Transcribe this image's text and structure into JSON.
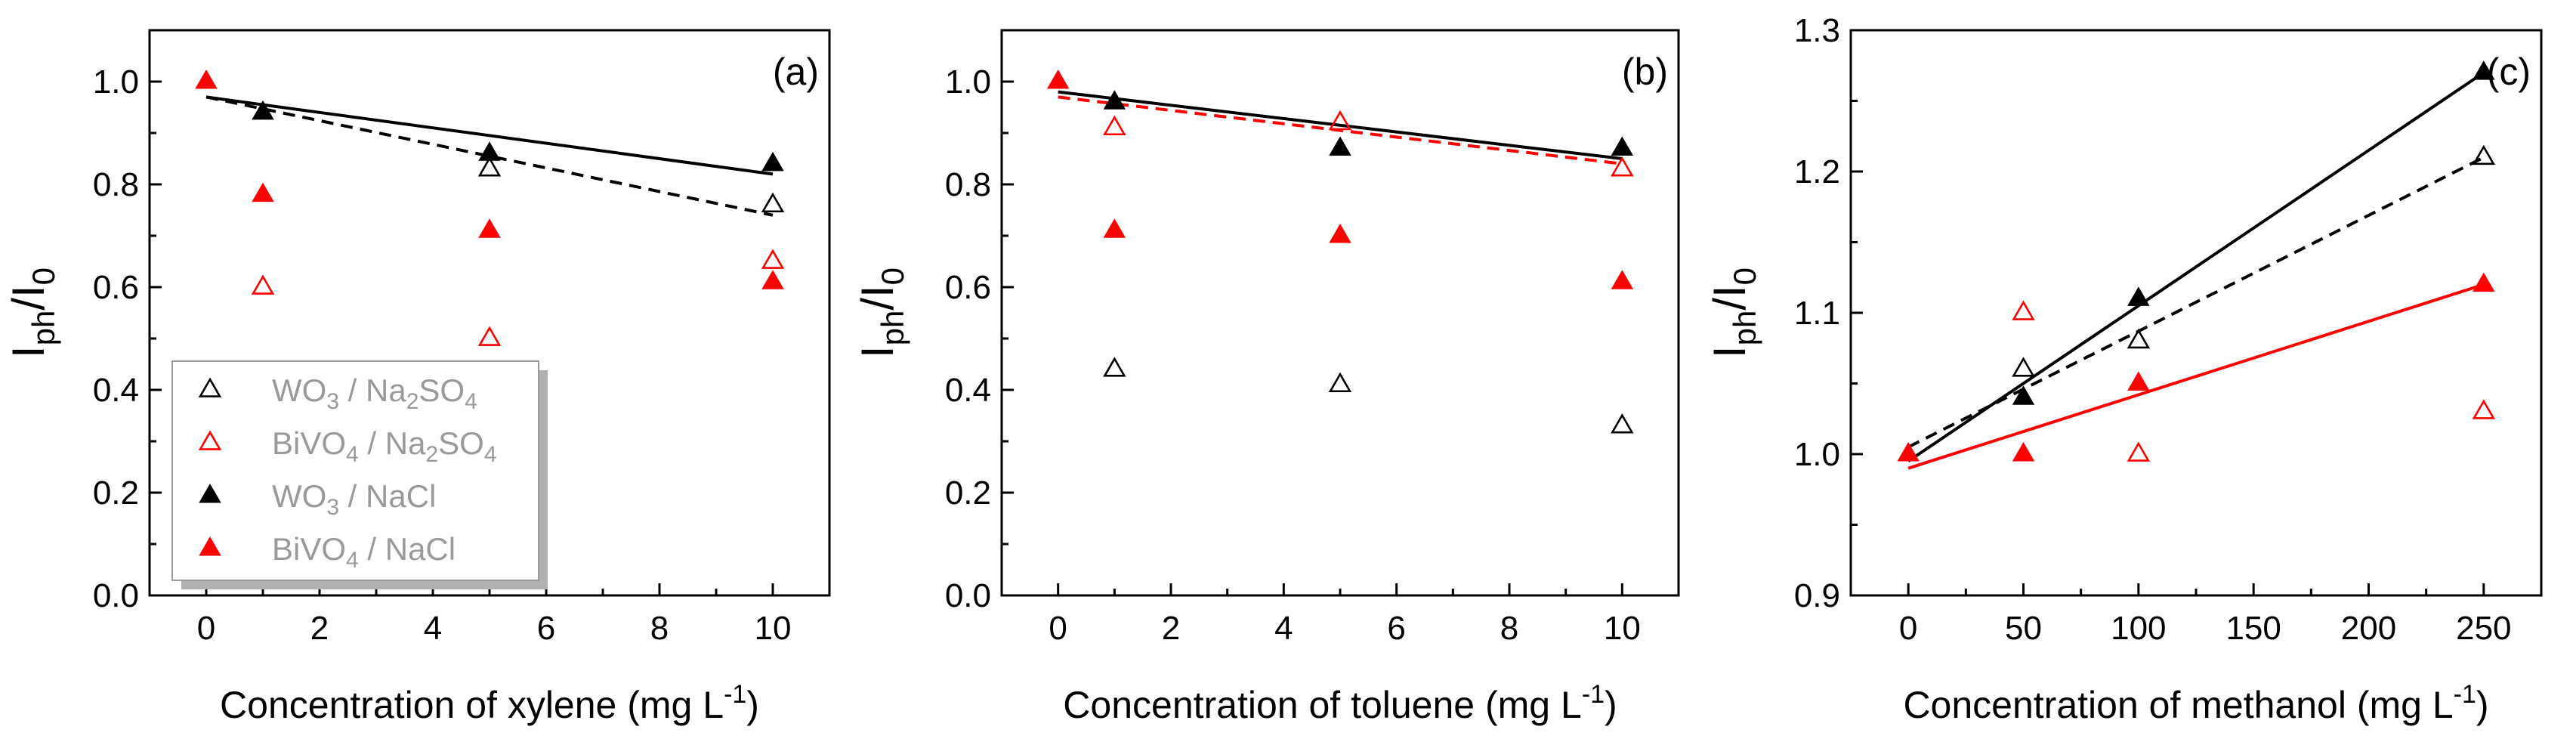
{
  "figure": {
    "description_free": true
  },
  "colors": {
    "black": "#000000",
    "red": "#ff0000",
    "legend_text": "#9a9a9a",
    "legend_shadow": "#b0b0b0"
  },
  "legend": {
    "entries": [
      {
        "label": "WO3 / Na2SO4",
        "material": "WO",
        "material_sub": "3",
        "sep": " / ",
        "salt": "Na",
        "salt_sub": "2",
        "salt_rest": "SO",
        "salt_sub2": "4",
        "marker": "open",
        "color": "#000000"
      },
      {
        "label": "BiVO4 / Na2SO4",
        "material": "BiVO",
        "material_sub": "4",
        "sep": " / ",
        "salt": "Na",
        "salt_sub": "2",
        "salt_rest": "SO",
        "salt_sub2": "4",
        "marker": "open",
        "color": "#ff0000"
      },
      {
        "label": "WO3 / NaCl",
        "material": "WO",
        "material_sub": "3",
        "sep": " / ",
        "salt": "NaCl",
        "salt_sub": "",
        "salt_rest": "",
        "salt_sub2": "",
        "marker": "filled",
        "color": "#000000"
      },
      {
        "label": "BiVO4 / NaCl",
        "material": "BiVO",
        "material_sub": "4",
        "sep": " / ",
        "salt": "NaCl",
        "salt_sub": "",
        "salt_rest": "",
        "salt_sub2": "",
        "marker": "filled",
        "color": "#ff0000"
      }
    ]
  },
  "chart_data": [
    {
      "type": "scatter",
      "panel_label": "(a)",
      "ylabel": {
        "main": "I",
        "sub1": "ph",
        "mid": "/I",
        "sub2": "0"
      },
      "xlabel": {
        "text": "Concentration of xylene (mg L",
        "sup": "-1",
        "close": ")"
      },
      "xlim": [
        -1,
        11
      ],
      "ylim": [
        0,
        1.1
      ],
      "xticks": [
        0,
        2,
        4,
        6,
        8,
        10
      ],
      "yticks": [
        0.0,
        0.2,
        0.4,
        0.6,
        0.8,
        1.0
      ],
      "xtick_labels": [
        "0",
        "2",
        "4",
        "6",
        "8",
        "10"
      ],
      "ytick_labels": [
        "0.0",
        "0.2",
        "0.4",
        "0.6",
        "0.8",
        "1.0"
      ],
      "series": [
        {
          "name": "WO3 / Na2SO4",
          "marker": "open",
          "color": "#000000",
          "x": [
            5,
            10
          ],
          "y": [
            0.83,
            0.76
          ]
        },
        {
          "name": "BiVO4 / Na2SO4",
          "marker": "open",
          "color": "#ff0000",
          "x": [
            1,
            5,
            10
          ],
          "y": [
            0.6,
            0.5,
            0.65
          ]
        },
        {
          "name": "WO3 / NaCl",
          "marker": "filled",
          "color": "#000000",
          "x": [
            1,
            5,
            10
          ],
          "y": [
            0.94,
            0.86,
            0.84
          ]
        },
        {
          "name": "BiVO4 / NaCl",
          "marker": "filled",
          "color": "#ff0000",
          "x": [
            0,
            1,
            5,
            10
          ],
          "y": [
            1.0,
            0.78,
            0.71,
            0.61
          ]
        }
      ],
      "fits": [
        {
          "series": "WO3 / NaCl",
          "style": "solid",
          "color": "#000000",
          "x": [
            0,
            10
          ],
          "y": [
            0.97,
            0.82
          ]
        },
        {
          "series": "WO3 / Na2SO4",
          "style": "dashed",
          "color": "#000000",
          "x": [
            0,
            10
          ],
          "y": [
            0.97,
            0.74
          ]
        }
      ]
    },
    {
      "type": "scatter",
      "panel_label": "(b)",
      "ylabel": {
        "main": "I",
        "sub1": "ph",
        "mid": "/I",
        "sub2": "0"
      },
      "xlabel": {
        "text": "Concentration of toluene (mg L",
        "sup": "-1",
        "close": ")"
      },
      "xlim": [
        -1,
        11
      ],
      "ylim": [
        0,
        1.1
      ],
      "xticks": [
        0,
        2,
        4,
        6,
        8,
        10
      ],
      "yticks": [
        0.0,
        0.2,
        0.4,
        0.6,
        0.8,
        1.0
      ],
      "xtick_labels": [
        "0",
        "2",
        "4",
        "6",
        "8",
        "10"
      ],
      "ytick_labels": [
        "0.0",
        "0.2",
        "0.4",
        "0.6",
        "0.8",
        "1.0"
      ],
      "series": [
        {
          "name": "WO3 / Na2SO4",
          "marker": "open",
          "color": "#000000",
          "x": [
            1,
            5,
            10
          ],
          "y": [
            0.44,
            0.41,
            0.33
          ]
        },
        {
          "name": "BiVO4 / Na2SO4",
          "marker": "open",
          "color": "#ff0000",
          "x": [
            1,
            5,
            10
          ],
          "y": [
            0.91,
            0.92,
            0.83
          ]
        },
        {
          "name": "WO3 / NaCl",
          "marker": "filled",
          "color": "#000000",
          "x": [
            1,
            5,
            10
          ],
          "y": [
            0.96,
            0.87,
            0.87
          ]
        },
        {
          "name": "BiVO4 / NaCl",
          "marker": "filled",
          "color": "#ff0000",
          "x": [
            0,
            1,
            5,
            10
          ],
          "y": [
            1.0,
            0.71,
            0.7,
            0.61
          ]
        }
      ],
      "fits": [
        {
          "series": "WO3 / NaCl",
          "style": "solid",
          "color": "#000000",
          "x": [
            0,
            10
          ],
          "y": [
            0.98,
            0.85
          ]
        },
        {
          "series": "BiVO4 / Na2SO4",
          "style": "dashed",
          "color": "#ff0000",
          "x": [
            0,
            10
          ],
          "y": [
            0.97,
            0.84
          ]
        }
      ]
    },
    {
      "type": "scatter",
      "panel_label": "(c)",
      "ylabel": {
        "main": "I",
        "sub1": "ph",
        "mid": "/I",
        "sub2": "0"
      },
      "xlabel": {
        "text": "Concentration of methanol (mg L",
        "sup": "-1",
        "close": ")"
      },
      "xlim": [
        -25,
        275
      ],
      "ylim": [
        0.9,
        1.3
      ],
      "xticks": [
        0,
        50,
        100,
        150,
        200,
        250
      ],
      "yticks": [
        0.9,
        1.0,
        1.1,
        1.2,
        1.3
      ],
      "xtick_labels": [
        "0",
        "50",
        "100",
        "150",
        "200",
        "250"
      ],
      "ytick_labels": [
        "0.9",
        "1.0",
        "1.1",
        "1.2",
        "1.3"
      ],
      "series": [
        {
          "name": "WO3 / Na2SO4",
          "marker": "open",
          "color": "#000000",
          "x": [
            50,
            100,
            250
          ],
          "y": [
            1.06,
            1.08,
            1.21
          ]
        },
        {
          "name": "BiVO4 / Na2SO4",
          "marker": "open",
          "color": "#ff0000",
          "x": [
            50,
            100,
            250
          ],
          "y": [
            1.1,
            1.0,
            1.03
          ]
        },
        {
          "name": "WO3 / NaCl",
          "marker": "filled",
          "color": "#000000",
          "x": [
            50,
            100,
            250
          ],
          "y": [
            1.04,
            1.11,
            1.27
          ]
        },
        {
          "name": "BiVO4 / NaCl",
          "marker": "filled",
          "color": "#ff0000",
          "x": [
            0,
            50,
            100,
            250
          ],
          "y": [
            1.0,
            1.0,
            1.05,
            1.12
          ]
        }
      ],
      "fits": [
        {
          "series": "WO3 / NaCl",
          "style": "solid",
          "color": "#000000",
          "x": [
            0,
            250
          ],
          "y": [
            0.995,
            1.27
          ]
        },
        {
          "series": "WO3 / Na2SO4",
          "style": "dashed",
          "color": "#000000",
          "x": [
            0,
            250
          ],
          "y": [
            1.005,
            1.21
          ]
        },
        {
          "series": "BiVO4 / NaCl",
          "style": "solid",
          "color": "#ff0000",
          "x": [
            0,
            250
          ],
          "y": [
            0.99,
            1.12
          ]
        }
      ]
    }
  ]
}
